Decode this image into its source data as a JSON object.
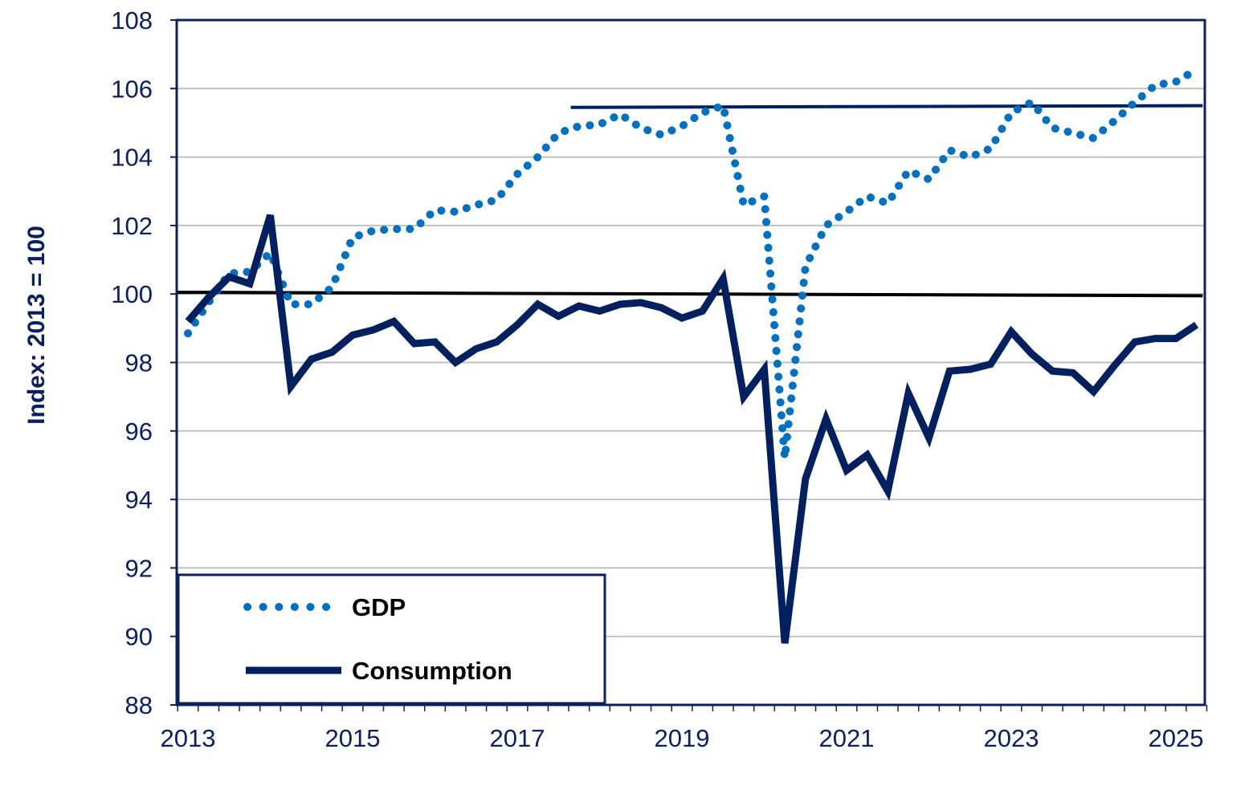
{
  "chart_data": {
    "type": "line",
    "title": "",
    "xlabel": "",
    "ylabel": "Index: 2013 = 100",
    "ylim": [
      88,
      108
    ],
    "yticks": [
      "88",
      "90",
      "92",
      "94",
      "96",
      "98",
      "100",
      "102",
      "104",
      "106",
      "108"
    ],
    "xticks": [
      "2013",
      "2015",
      "2017",
      "2019",
      "2021",
      "2023",
      "2025"
    ],
    "x_start": "2013Q1",
    "x_frequency": "quarterly",
    "grid": true,
    "legend_position": "bottom-left",
    "series": [
      {
        "name": "GDP",
        "style": "dotted",
        "color": "#0070c0",
        "values": [
          98.85,
          99.75,
          100.6,
          100.65,
          101.2,
          99.7,
          99.7,
          100.2,
          101.65,
          101.85,
          101.9,
          101.9,
          102.45,
          102.4,
          102.6,
          102.75,
          103.5,
          104.0,
          104.7,
          104.9,
          104.95,
          105.25,
          104.85,
          104.65,
          104.9,
          105.3,
          105.5,
          102.6,
          102.85,
          95.2,
          100.8,
          102.0,
          102.4,
          102.85,
          102.65,
          103.6,
          103.35,
          104.2,
          104.0,
          104.25,
          105.3,
          105.6,
          104.85,
          104.7,
          104.55,
          105.05,
          105.6,
          106.1,
          106.2,
          106.55
        ]
      },
      {
        "name": "Consumption",
        "style": "solid",
        "color": "#002060",
        "values": [
          99.2,
          99.9,
          100.5,
          100.3,
          102.3,
          97.3,
          98.1,
          98.3,
          98.8,
          98.95,
          99.2,
          98.55,
          98.6,
          98.0,
          98.4,
          98.6,
          99.1,
          99.7,
          99.35,
          99.65,
          99.5,
          99.7,
          99.75,
          99.6,
          99.3,
          99.5,
          100.45,
          97.0,
          97.8,
          89.8,
          94.6,
          96.35,
          94.85,
          95.3,
          94.25,
          97.1,
          95.8,
          97.75,
          97.8,
          97.95,
          98.9,
          98.25,
          97.75,
          97.7,
          97.15,
          97.9,
          98.6,
          98.7,
          98.7,
          99.1
        ]
      }
    ],
    "reference_lines": [
      {
        "color": "#000000",
        "from_quarter": -0.55,
        "to_quarter": 49.3,
        "y_start": 100.05,
        "y_end": 99.95
      },
      {
        "color": "#002060",
        "from_quarter": 18.6,
        "to_quarter": 49.3,
        "y_start": 105.45,
        "y_end": 105.5
      }
    ]
  }
}
